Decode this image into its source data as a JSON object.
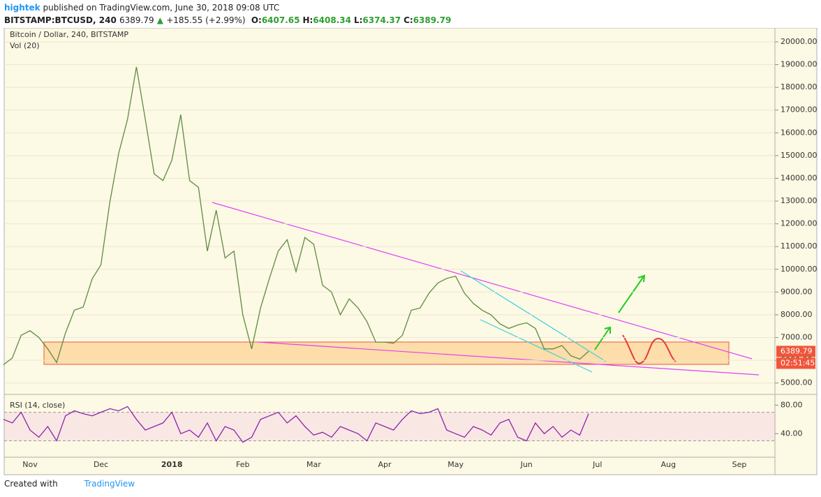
{
  "header": {
    "author": "hightek",
    "published": "published on TradingView.com, June 30, 2018 09:08 UTC",
    "symbol": "BITSTAMP:BTCUSD, 240",
    "last": "6389.79",
    "arrow": "▲",
    "change": "+185.55 (+2.99%)",
    "ohlc": [
      {
        "key": "O:",
        "value": "6407.65"
      },
      {
        "key": "H:",
        "value": "6408.34"
      },
      {
        "key": "L:",
        "value": "6374.37"
      },
      {
        "key": "C:",
        "value": "6389.79"
      }
    ]
  },
  "chart_data": [
    {
      "type": "line",
      "title": "Bitcoin / Dollar, 240, BITSTAMP",
      "subtitle": "Vol (20)",
      "categories": [
        null,
        null,
        null,
        "Nov",
        null,
        null,
        null,
        null,
        null,
        null,
        null,
        "Dec",
        null,
        null,
        null,
        null,
        null,
        null,
        null,
        "2018",
        null,
        null,
        null,
        null,
        null,
        null,
        null,
        "Feb",
        null,
        null,
        null,
        null,
        null,
        null,
        null,
        "Mar",
        null,
        null,
        null,
        null,
        null,
        null,
        null,
        "Apr",
        null,
        null,
        null,
        null,
        null,
        null,
        null,
        "May",
        null,
        null,
        null,
        null,
        null,
        null,
        null,
        "Jun",
        null,
        null,
        null,
        null,
        null,
        null,
        null,
        "Jul",
        null,
        null,
        null,
        null,
        null,
        null,
        null,
        "Aug",
        null,
        null,
        null,
        null,
        null,
        null,
        null,
        "Sep"
      ],
      "series": [
        {
          "name": "BTCUSD",
          "color": "#5f8a43",
          "values": [
            5800,
            6100,
            7100,
            7300,
            7000,
            6500,
            5900,
            7200,
            8200,
            8340,
            9570,
            10200,
            12950,
            15100,
            16600,
            18900,
            16600,
            14200,
            13900,
            14800,
            16800,
            13900,
            13600,
            10800,
            12600,
            10500,
            10800,
            8000,
            6500,
            8300,
            9600,
            10800,
            11300,
            9900,
            11400,
            11100,
            9300,
            9000,
            8000,
            8700,
            8300,
            7700,
            6800,
            6800,
            6750,
            7100,
            8200,
            8300,
            8950,
            9400,
            9600,
            9700,
            8950,
            8500,
            8200,
            8000,
            7600,
            7400,
            7550,
            7650,
            7400,
            6500,
            6500,
            6650,
            6200,
            6050,
            6389.79,
            null,
            null,
            null,
            null,
            null,
            null,
            null,
            null,
            null,
            null,
            null,
            null,
            null,
            null,
            null,
            null,
            null
          ]
        }
      ],
      "ylim": [
        4500,
        20500
      ],
      "yticks": [
        {
          "value": 5000,
          "label": "5000.00"
        },
        {
          "value": 6000,
          "label": "6000.00"
        },
        {
          "value": 7000,
          "label": "7000.00"
        },
        {
          "value": 8000,
          "label": "8000.00"
        },
        {
          "value": 9000,
          "label": "9000.00"
        },
        {
          "value": 10000,
          "label": "10000.00"
        },
        {
          "value": 11000,
          "label": "11000.00"
        },
        {
          "value": 12000,
          "label": "12000.00"
        },
        {
          "value": 13000,
          "label": "13000.00"
        },
        {
          "value": 14000,
          "label": "14000.00"
        },
        {
          "value": 15000,
          "label": "15000.00"
        },
        {
          "value": 16000,
          "label": "16000.00"
        },
        {
          "value": 17000,
          "label": "17000.00"
        },
        {
          "value": 18000,
          "label": "18000.00"
        },
        {
          "value": 19000,
          "label": "19000.00"
        },
        {
          "value": 20000,
          "label": "20000.00"
        }
      ],
      "grid": true,
      "price_tag": "6389.79",
      "countdown": "02:51:45"
    },
    {
      "type": "line",
      "title": "RSI (14, close)",
      "series": [
        {
          "name": "RSI",
          "color": "#8e24aa",
          "values": [
            60,
            55,
            70,
            45,
            35,
            50,
            30,
            65,
            72,
            68,
            65,
            70,
            75,
            72,
            78,
            60,
            45,
            50,
            55,
            70,
            40,
            45,
            35,
            55,
            30,
            50,
            45,
            28,
            35,
            60,
            65,
            70,
            55,
            65,
            50,
            38,
            42,
            35,
            50,
            45,
            40,
            30,
            55,
            50,
            45,
            60,
            72,
            68,
            70,
            75,
            45,
            40,
            35,
            50,
            45,
            38,
            55,
            60,
            35,
            30,
            55,
            40,
            50,
            35,
            45,
            38,
            68,
            null,
            null,
            null,
            null,
            null,
            null,
            null,
            null,
            null,
            null,
            null,
            null,
            null,
            null,
            null,
            null,
            null
          ]
        }
      ],
      "ylim": [
        7,
        95
      ],
      "yticks": [
        {
          "value": 40,
          "label": "40.00"
        },
        {
          "value": 80,
          "label": "80.00"
        }
      ],
      "band": [
        30,
        70
      ],
      "grid": false
    }
  ],
  "footer": {
    "created": "Created with",
    "brand": "TradingView"
  }
}
